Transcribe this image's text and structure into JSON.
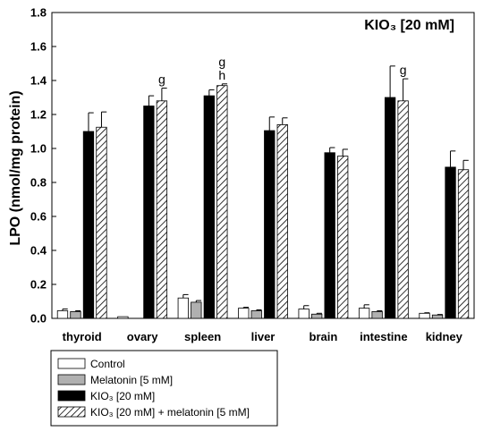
{
  "chart_data": {
    "type": "bar",
    "title": "KIO₃ [20 mM]",
    "ylabel": "LPO (nmol/mg protein)",
    "ylim": [
      0,
      1.8
    ],
    "yticks": [
      "0.0",
      "0.2",
      "0.4",
      "0.6",
      "0.8",
      "1.0",
      "1.2",
      "1.4",
      "1.6",
      "1.8"
    ],
    "categories": [
      "thyroid",
      "ovary",
      "spleen",
      "liver",
      "brain",
      "intestine",
      "kidney"
    ],
    "series": [
      {
        "name": "Control",
        "color": "#ffffff",
        "pattern": "solid",
        "values": [
          0.045,
          0.01,
          0.12,
          0.06,
          0.055,
          0.06,
          0.03
        ],
        "errors": [
          0.01,
          0.0,
          0.02,
          0.005,
          0.02,
          0.02,
          0.003
        ]
      },
      {
        "name": "Melatonin [5 mM]",
        "color": "#b0b0b0",
        "pattern": "solid",
        "values": [
          0.04,
          0.0,
          0.095,
          0.045,
          0.025,
          0.04,
          0.02
        ],
        "errors": [
          0.005,
          0.0,
          0.01,
          0.005,
          0.005,
          0.005,
          0.003
        ]
      },
      {
        "name": "KIO₃ [20 mM]",
        "color": "#000000",
        "pattern": "solid",
        "values": [
          1.1,
          1.25,
          1.31,
          1.105,
          0.975,
          1.3,
          0.89
        ],
        "errors": [
          0.11,
          0.06,
          0.035,
          0.08,
          0.03,
          0.185,
          0.095
        ]
      },
      {
        "name": "KIO₃ [20 mM] + melatonin [5 mM]",
        "color": "#ffffff",
        "pattern": "hatch",
        "values": [
          1.125,
          1.28,
          1.37,
          1.14,
          0.955,
          1.28,
          0.875
        ],
        "errors": [
          0.09,
          0.075,
          0.01,
          0.04,
          0.04,
          0.13,
          0.055
        ]
      }
    ],
    "annotations": [
      {
        "category": "ovary",
        "series": 3,
        "text": "g"
      },
      {
        "category": "spleen",
        "series": 3,
        "text": "g"
      },
      {
        "category": "spleen",
        "series": 3,
        "text": "h"
      },
      {
        "category": "intestine",
        "series": 3,
        "text": "g"
      }
    ],
    "legend_position": "bottom-left",
    "grid": false
  }
}
